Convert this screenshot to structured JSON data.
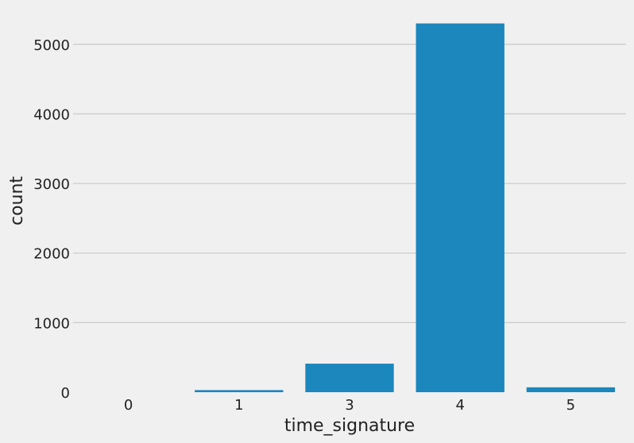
{
  "chart_data": {
    "type": "bar",
    "title": "",
    "xlabel": "time_signature",
    "ylabel": "count",
    "categories": [
      "0",
      "1",
      "3",
      "4",
      "5"
    ],
    "values": [
      0,
      30,
      410,
      5300,
      70
    ],
    "ylim": [
      0,
      5500
    ],
    "yticks": [
      "0",
      "1000",
      "2000",
      "3000",
      "4000",
      "5000"
    ],
    "ytick_values": [
      0,
      1000,
      2000,
      3000,
      4000,
      5000
    ],
    "grid": "horizontal",
    "bar_color": "#1b87bd",
    "background_color": "#f0f0f0",
    "grid_color": "#cbcbcb"
  }
}
